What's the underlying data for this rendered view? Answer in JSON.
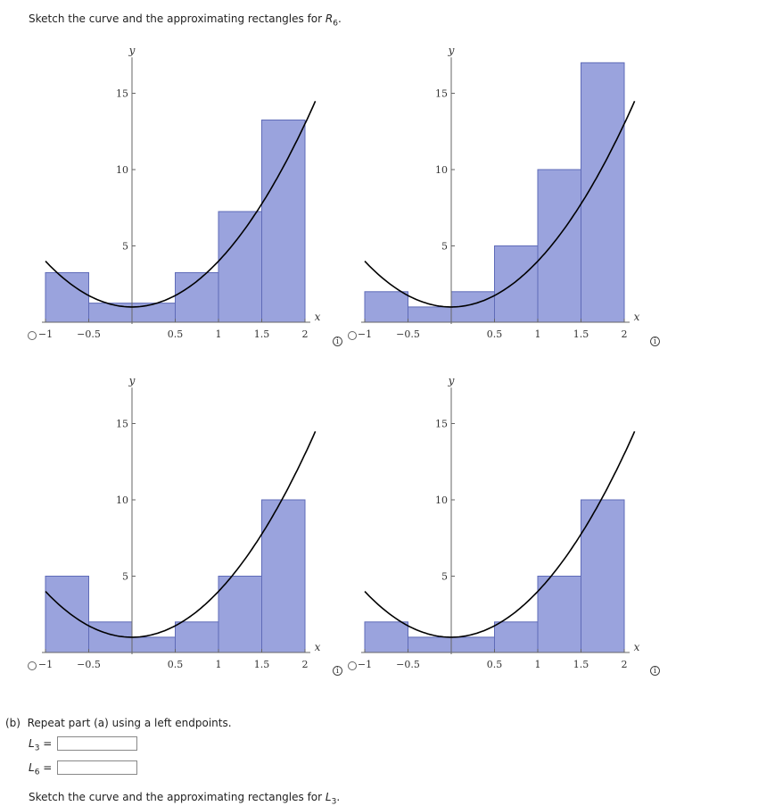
{
  "part_a": {
    "instruction_prefix": "Sketch the curve and the approximating rectangles for ",
    "instruction_var": "R",
    "instruction_sub": "6",
    "instruction_suffix": "."
  },
  "part_b": {
    "label": "(b)",
    "instruction": "Repeat part (a) using a left endpoints.",
    "fields": [
      {
        "var": "L",
        "sub": "3",
        "eq": "=",
        "value": ""
      },
      {
        "var": "L",
        "sub": "6",
        "eq": "=",
        "value": ""
      }
    ],
    "sketch_prefix": "Sketch the curve and the approximating rectangles for ",
    "sketch_var": "L",
    "sketch_sub": "3",
    "sketch_suffix": "."
  },
  "info_glyph": "i",
  "chart_data": [
    {
      "type": "bar",
      "x_label": "x",
      "y_label": "y",
      "x_ticks": [
        "-1",
        "-0.5",
        "0.5",
        "1",
        "1.5",
        "2"
      ],
      "y_ticks": [
        "5",
        "10",
        "15"
      ],
      "xlim": [
        -1,
        2
      ],
      "ylim": [
        0,
        17
      ],
      "rect_edges": [
        -1,
        -0.5,
        0,
        0.5,
        1,
        1.5,
        2
      ],
      "heights": [
        3.25,
        1.25,
        1.25,
        3.25,
        7.25,
        13.25
      ]
    },
    {
      "type": "bar",
      "x_label": "x",
      "y_label": "y",
      "x_ticks": [
        "-1",
        "-0.5",
        "0.5",
        "1",
        "1.5",
        "2"
      ],
      "y_ticks": [
        "5",
        "10",
        "15"
      ],
      "xlim": [
        -1,
        2
      ],
      "ylim": [
        0,
        17
      ],
      "rect_edges": [
        -1,
        -0.5,
        0,
        0.5,
        1,
        1.5,
        2
      ],
      "heights": [
        2,
        1,
        2,
        5,
        10,
        17
      ]
    },
    {
      "type": "bar",
      "x_label": "x",
      "y_label": "y",
      "x_ticks": [
        "-1",
        "-0.5",
        "0.5",
        "1",
        "1.5",
        "2"
      ],
      "y_ticks": [
        "5",
        "10",
        "15"
      ],
      "xlim": [
        -1,
        2
      ],
      "ylim": [
        0,
        17
      ],
      "rect_edges": [
        -1,
        -0.5,
        0,
        0.5,
        1,
        1.5,
        2
      ],
      "heights": [
        5,
        2,
        1,
        2,
        5,
        10
      ]
    },
    {
      "type": "bar",
      "x_label": "x",
      "y_label": "y",
      "x_ticks": [
        "-1",
        "-0.5",
        "0.5",
        "1",
        "1.5",
        "2"
      ],
      "y_ticks": [
        "5",
        "10",
        "15"
      ],
      "xlim": [
        -1,
        2
      ],
      "ylim": [
        0,
        17
      ],
      "rect_edges": [
        -1,
        -0.5,
        0,
        0.5,
        1,
        1.5,
        2
      ],
      "heights": [
        2,
        1,
        1,
        2,
        5,
        10
      ]
    }
  ]
}
